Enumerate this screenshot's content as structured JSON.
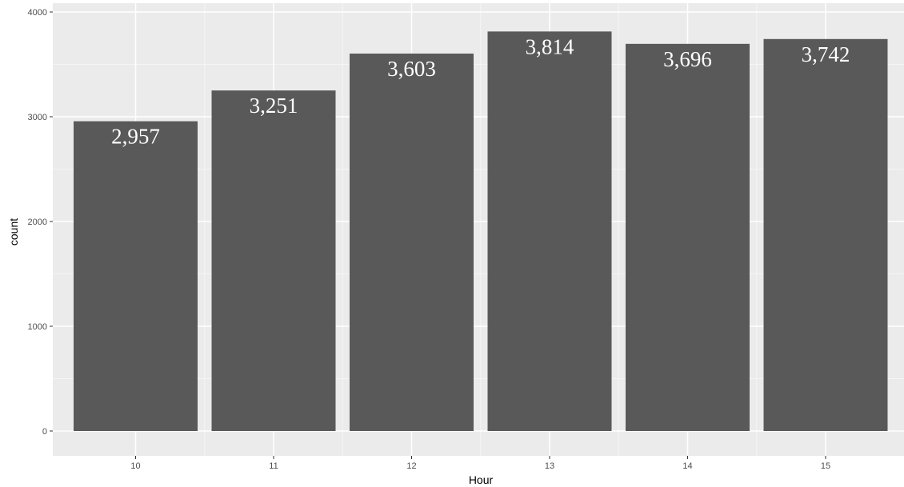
{
  "chart_data": {
    "type": "bar",
    "title": "",
    "xlabel": "Hour",
    "ylabel": "count",
    "categories": [
      "10",
      "11",
      "12",
      "13",
      "14",
      "15"
    ],
    "values": [
      2957,
      3251,
      3603,
      3814,
      3696,
      3742
    ],
    "data_labels": [
      "2,957",
      "3,251",
      "3,603",
      "3,814",
      "3,696",
      "3,742"
    ],
    "ylim": [
      0,
      4000
    ],
    "y_ticks": [
      0,
      1000,
      2000,
      3000,
      4000
    ],
    "y_tick_labels": [
      "0",
      "1000",
      "2000",
      "3000",
      "4000"
    ],
    "grid": true,
    "legend": "none",
    "colors": {
      "panel_background": "#ebebeb",
      "grid_major": "#ffffff",
      "grid_minor": "#f5f5f5",
      "bar_fill": "#595959",
      "data_label": "#ffffff",
      "tick_text": "#4d4d4d",
      "tick_mark": "#333333"
    }
  }
}
